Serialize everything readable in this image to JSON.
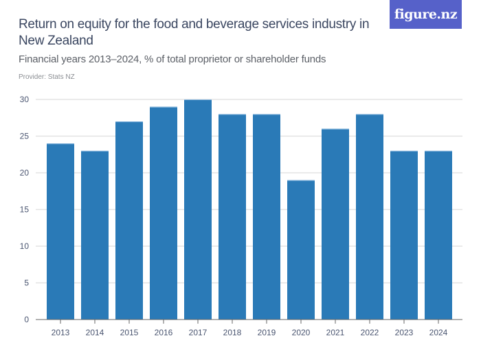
{
  "header": {
    "title": "Return on equity for the food and beverage services industry in New Zealand",
    "subtitle": "Financial years 2013–2024, % of total proprietor or shareholder funds",
    "provider": "Provider: Stats NZ",
    "logo_text": "figure.nz"
  },
  "colors": {
    "bar": "#2a7ab7",
    "bar_top": "#8fbbe0",
    "grid": "#e3e3e3",
    "axis": "#666666",
    "logo_bg": "#5661c9"
  },
  "chart_data": {
    "type": "bar",
    "title": "Return on equity for the food and beverage services industry in New Zealand",
    "subtitle": "Financial years 2013–2024, % of total proprietor or shareholder funds",
    "xlabel": "",
    "ylabel": "",
    "categories": [
      "2013",
      "2014",
      "2015",
      "2016",
      "2017",
      "2018",
      "2019",
      "2020",
      "2021",
      "2022",
      "2023",
      "2024"
    ],
    "values": [
      24,
      23,
      27,
      29,
      30,
      28,
      28,
      19,
      26,
      28,
      23,
      23
    ],
    "ylim": [
      0,
      30
    ],
    "yticks": [
      0,
      5,
      10,
      15,
      20,
      25,
      30
    ],
    "grid": true,
    "legend": "none"
  }
}
